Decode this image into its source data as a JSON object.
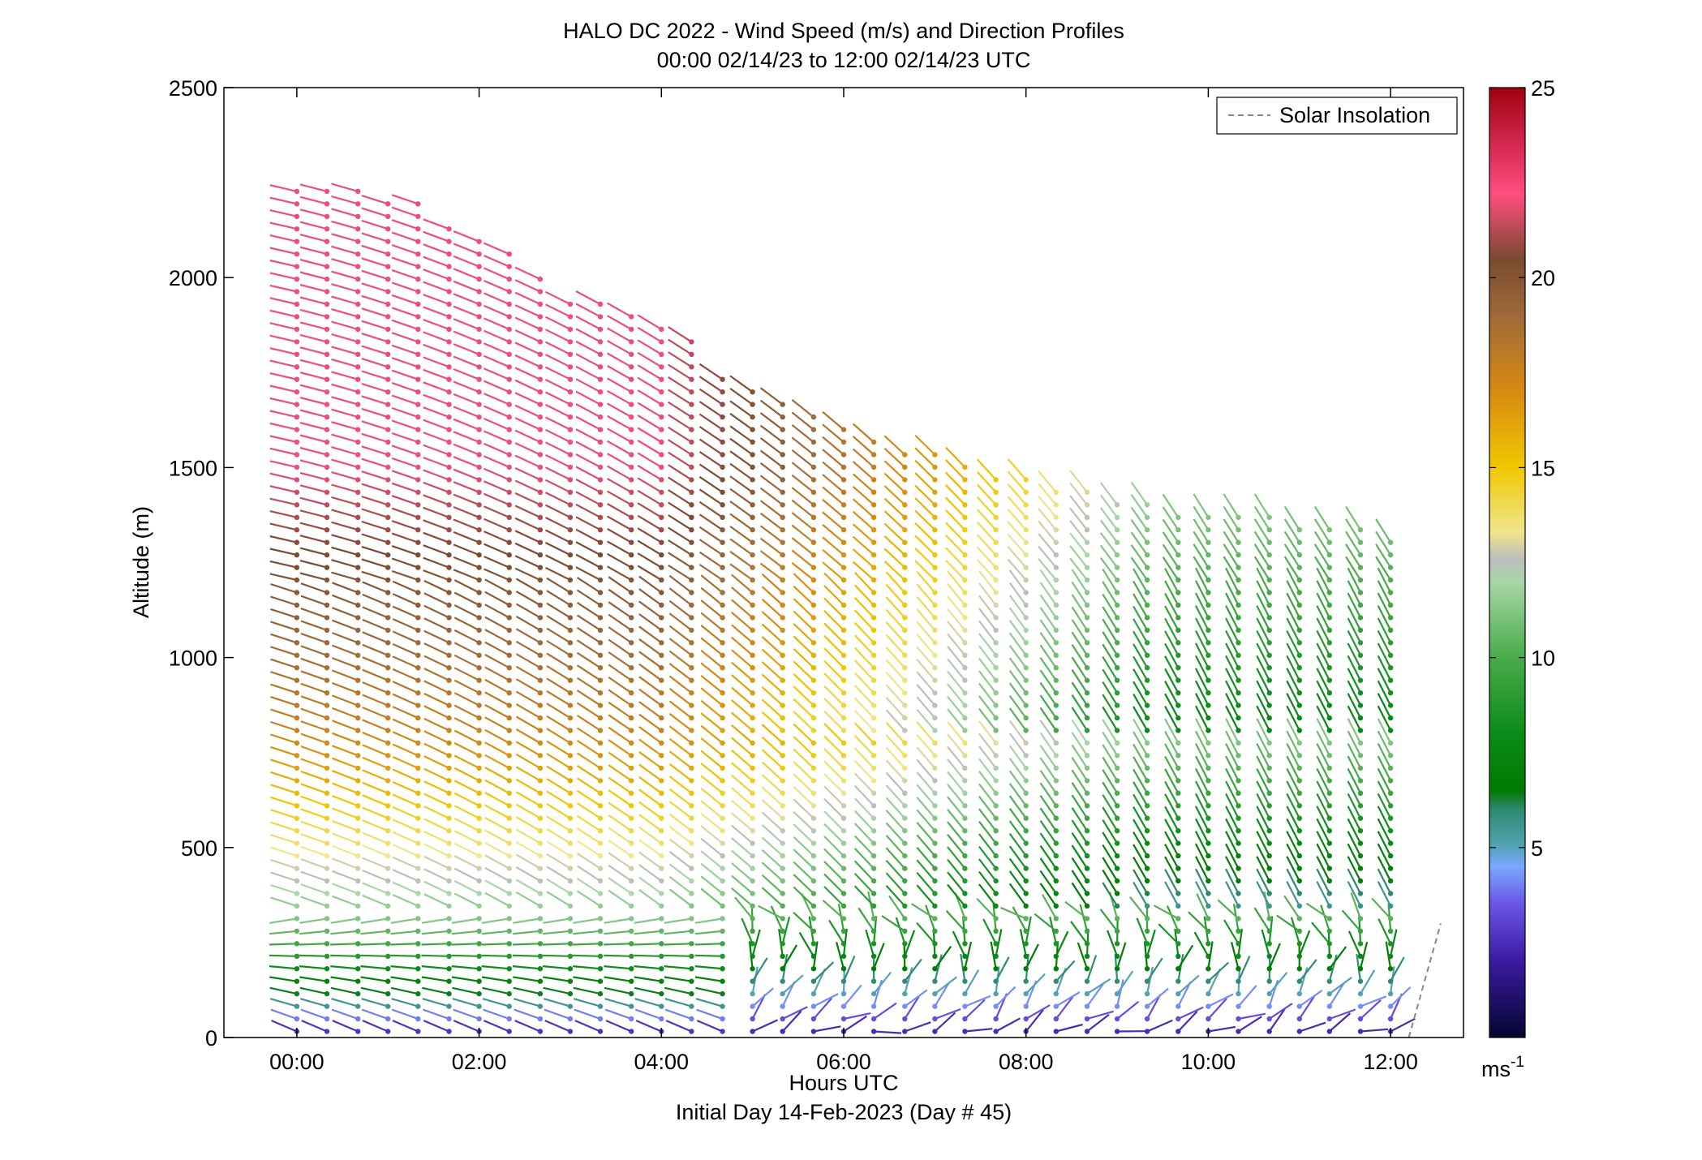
{
  "chart_data": {
    "type": "scatter",
    "title": "HALO DC 2022 - Wind Speed (m/s) and Direction Profiles",
    "subtitle": "00:00 02/14/23 to 12:00 02/14/23  UTC",
    "xlabel": "Hours UTC",
    "xlabel2": "Initial Day 14-Feb-2023 (Day # 45)",
    "ylabel": "Altitude (m)",
    "xlim": [
      -0.8,
      12.8
    ],
    "ylim": [
      0,
      2500
    ],
    "x_ticks": [
      {
        "value": 0,
        "label": "00:00"
      },
      {
        "value": 2,
        "label": "02:00"
      },
      {
        "value": 4,
        "label": "04:00"
      },
      {
        "value": 6,
        "label": "06:00"
      },
      {
        "value": 8,
        "label": "08:00"
      },
      {
        "value": 10,
        "label": "10:00"
      },
      {
        "value": 12,
        "label": "12:00"
      }
    ],
    "y_ticks": [
      0,
      500,
      1000,
      1500,
      2000,
      2500
    ],
    "legend": {
      "placement": "top-right",
      "entries": [
        {
          "label": "Solar Insolation",
          "style": "dashed",
          "color": "#888888"
        }
      ]
    },
    "colorbar": {
      "ticks": [
        5,
        10,
        15,
        20,
        25
      ],
      "range": [
        0,
        25
      ],
      "unit_label": "ms",
      "unit_exponent": "-1",
      "colors": [
        [
          0,
          "#050530"
        ],
        [
          2,
          "#3a1aa0"
        ],
        [
          3.5,
          "#6a55e6"
        ],
        [
          4.5,
          "#7aa8ff"
        ],
        [
          5.2,
          "#4a9fa5"
        ],
        [
          6,
          "#2e8a70"
        ],
        [
          6.5,
          "#007a00"
        ],
        [
          8,
          "#0a8c1a"
        ],
        [
          10,
          "#4aab4a"
        ],
        [
          12,
          "#a8d6a8"
        ],
        [
          12.6,
          "#bcbcbc"
        ],
        [
          13.3,
          "#f0e68c"
        ],
        [
          15,
          "#f0c800"
        ],
        [
          17,
          "#d88a10"
        ],
        [
          19,
          "#9e6a3a"
        ],
        [
          20.5,
          "#7a4a30"
        ],
        [
          22.2,
          "#ff4d80"
        ],
        [
          23.5,
          "#d42850"
        ],
        [
          25,
          "#a00010"
        ]
      ]
    },
    "wind_field": {
      "profiles": [
        0.0,
        0.33,
        0.67,
        1.0,
        1.33,
        1.67,
        2.0,
        2.33,
        2.67,
        3.0,
        3.33,
        3.67,
        4.0,
        4.33,
        4.67,
        5.0,
        5.33,
        5.67,
        6.0,
        6.33,
        6.67,
        7.0,
        7.33,
        7.67,
        8.0,
        8.33,
        8.67,
        9.0,
        9.33,
        9.67,
        10.0,
        10.33,
        10.67,
        11.0,
        11.33,
        11.67,
        12.0
      ],
      "profile_top_m": [
        2230,
        2230,
        2230,
        2200,
        2200,
        2150,
        2120,
        2080,
        2000,
        1960,
        1950,
        1920,
        1880,
        1840,
        1760,
        1720,
        1680,
        1640,
        1620,
        1590,
        1560,
        1540,
        1520,
        1490,
        1470,
        1460,
        1440,
        1430,
        1420,
        1400,
        1400,
        1380,
        1370,
        1360,
        1350,
        1340,
        1330
      ],
      "altitude_step_m": 33,
      "speed_m_s": "low (1-6) near surface, 9-12 around 100-300 m, 15-18 around 400-900 m, 20-23 above 1000 m before 04:00, decreasing to 9-13 after 08:00",
      "direction": "mostly from the north-west aloft; from the west near the surface early, turning to light and variable after 05:00"
    },
    "solar_insolation": [
      [
        12.2,
        0
      ],
      [
        12.55,
        300
      ]
    ]
  }
}
